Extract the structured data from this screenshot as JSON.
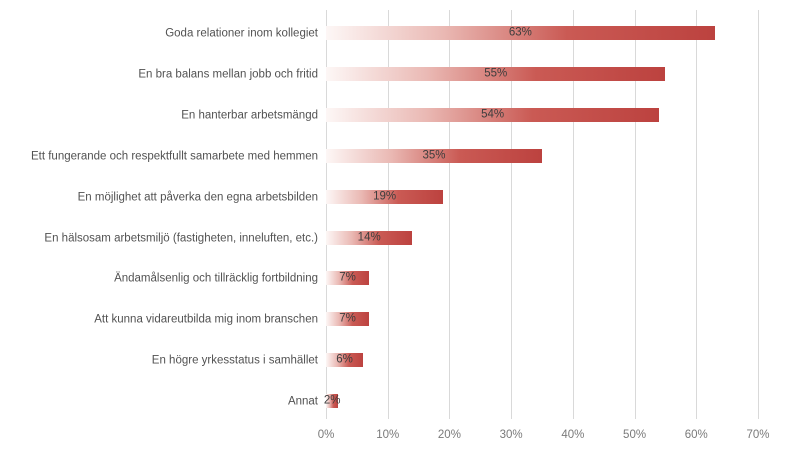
{
  "chart_data": {
    "type": "bar",
    "orientation": "horizontal",
    "title": "",
    "xlabel": "",
    "ylabel": "",
    "categories": [
      "Goda relationer inom kollegiet",
      "En bra balans mellan jobb och fritid",
      "En hanterbar arbetsmängd",
      "Ett fungerande och respektfullt samarbete med hemmen",
      "En möjlighet att påverka den egna arbetsbilden",
      "En hälsosam arbetsmiljö (fastigheten, inneluften, etc.)",
      "Ändamålsenlig och tillräcklig fortbildning",
      "Att kunna vidareutbilda mig inom branschen",
      "En högre yrkesstatus i samhället",
      "Annat"
    ],
    "values": [
      63,
      55,
      54,
      35,
      19,
      14,
      7,
      7,
      6,
      2
    ],
    "value_labels": [
      "63%",
      "55%",
      "54%",
      "35%",
      "19%",
      "14%",
      "7%",
      "7%",
      "6%",
      "2%"
    ],
    "x_ticks": [
      0,
      10,
      20,
      30,
      40,
      50,
      60,
      70
    ],
    "x_tick_labels": [
      "0%",
      "10%",
      "20%",
      "30%",
      "40%",
      "50%",
      "60%",
      "70%"
    ],
    "xlim": [
      0,
      70
    ],
    "grid": "vertical-gridlines-on",
    "legend": "none",
    "colors": {
      "bar_gradient_start": "#fdf7f6",
      "bar_gradient_light": "#eab9b4",
      "bar_gradient_main": "#ca5a54",
      "bar_gradient_end": "#bc423f",
      "gridline": "#d9d9d9",
      "category_label": "#525252",
      "value_label": "#3d3d3d",
      "tick_label": "#7a7a7a",
      "background": "#ffffff"
    }
  }
}
